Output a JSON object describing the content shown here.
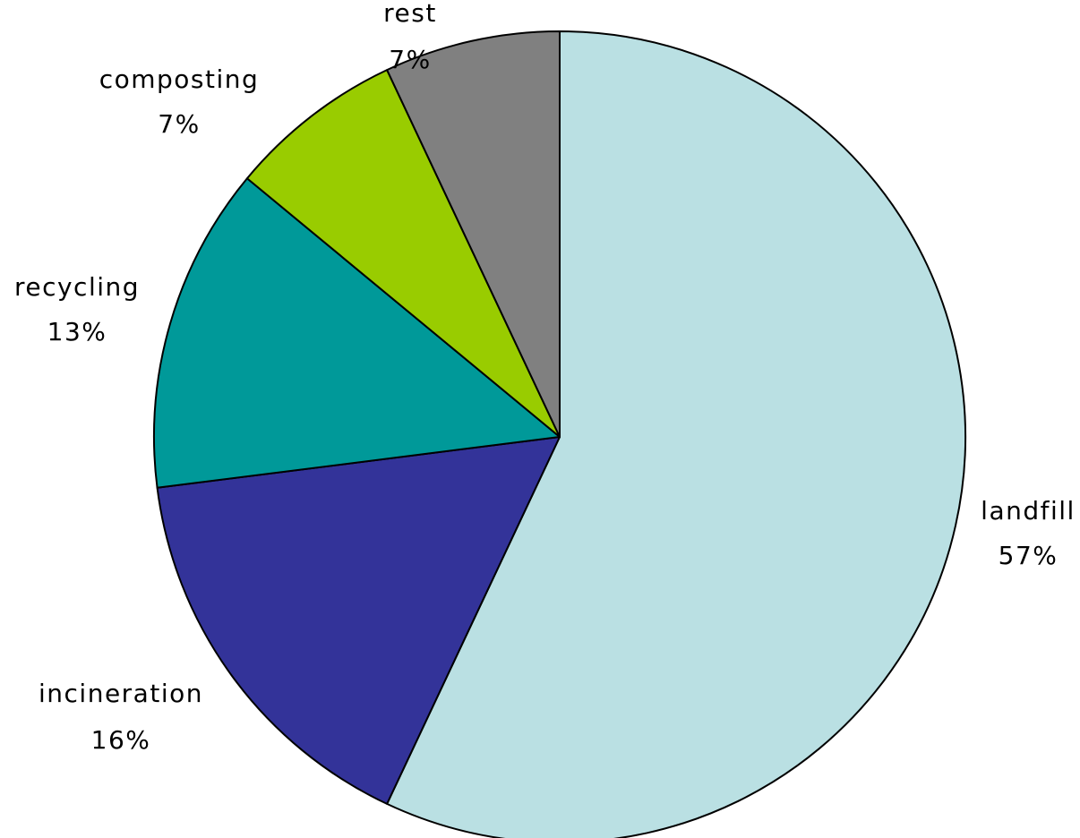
{
  "chart_data": {
    "type": "pie",
    "title": "",
    "slices": [
      {
        "label": "landfill",
        "value": 57,
        "value_label": "57%",
        "color": "#bae0e3"
      },
      {
        "label": "incineration",
        "value": 16,
        "value_label": "16%",
        "color": "#333399"
      },
      {
        "label": "recycling",
        "value": 13,
        "value_label": "13%",
        "color": "#009999"
      },
      {
        "label": "composting",
        "value": 7,
        "value_label": "7%",
        "color": "#99cc00"
      },
      {
        "label": "rest",
        "value": 7,
        "value_label": "7%",
        "color": "#808080"
      }
    ],
    "legend": "none",
    "start_angle": "12 o'clock",
    "direction": "clockwise"
  }
}
